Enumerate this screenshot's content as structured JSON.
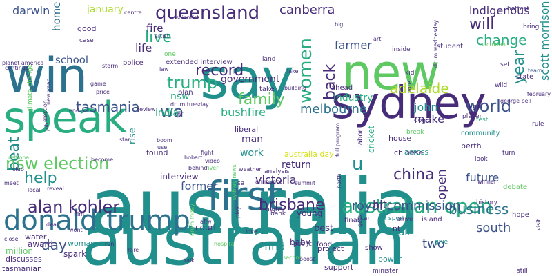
{
  "palette": {
    "purple": "#472c7a",
    "indigo": "#3b528b",
    "blue": "#2c728e",
    "teal": "#21908d",
    "green": "#28ae80",
    "lime": "#5ec962",
    "yellow": "#addc30",
    "bright": "#d5e21a"
  },
  "words": [
    {
      "text": "australia",
      "size": 112,
      "color": "teal",
      "rot": false
    },
    {
      "text": "australian",
      "size": 96,
      "color": "teal",
      "rot": false
    },
    {
      "text": "sydney",
      "size": 64,
      "color": "purple",
      "rot": false
    },
    {
      "text": "new",
      "size": 70,
      "color": "lime",
      "rot": false
    },
    {
      "text": "say",
      "size": 80,
      "color": "teal",
      "rot": false
    },
    {
      "text": "win",
      "size": 70,
      "color": "blue",
      "rot": false
    },
    {
      "text": "speak",
      "size": 62,
      "color": "green",
      "rot": false
    },
    {
      "text": "first",
      "size": 58,
      "color": "blue",
      "rot": false
    },
    {
      "text": "donald trump",
      "size": 40,
      "color": "blue",
      "rot": false
    },
    {
      "text": "australian open",
      "size": 28,
      "color": "green",
      "rot": false
    },
    {
      "text": "queensland",
      "size": 26,
      "color": "purple",
      "rot": false
    },
    {
      "text": "canberra",
      "size": 18,
      "color": "purple",
      "rot": false
    },
    {
      "text": "indigenous",
      "size": 16,
      "color": "purple",
      "rot": false
    },
    {
      "text": "will",
      "size": 22,
      "color": "purple",
      "rot": false
    },
    {
      "text": "change",
      "size": 20,
      "color": "green",
      "rot": false
    },
    {
      "text": "women",
      "size": 26,
      "color": "green",
      "rot": true
    },
    {
      "text": "back",
      "size": 22,
      "color": "purple",
      "rot": true
    },
    {
      "text": "trump",
      "size": 24,
      "color": "green",
      "rot": false
    },
    {
      "text": "record",
      "size": 22,
      "color": "purple",
      "rot": false
    },
    {
      "text": "live",
      "size": 22,
      "color": "green",
      "rot": false
    },
    {
      "text": "life",
      "size": 16,
      "color": "purple",
      "rot": false
    },
    {
      "text": "fire",
      "size": 15,
      "color": "purple",
      "rot": false
    },
    {
      "text": "darwin",
      "size": 16,
      "color": "indigo",
      "rot": false
    },
    {
      "text": "january",
      "size": 14,
      "color": "yellow",
      "rot": false
    },
    {
      "text": "home",
      "size": 15,
      "color": "blue",
      "rot": true
    },
    {
      "text": "good",
      "size": 11,
      "color": "purple",
      "rot": false
    },
    {
      "text": "case",
      "size": 9,
      "color": "purple",
      "rot": false
    },
    {
      "text": "school",
      "size": 15,
      "color": "indigo",
      "rot": false
    },
    {
      "text": "tasmania",
      "size": 20,
      "color": "indigo",
      "rot": false
    },
    {
      "text": "wa",
      "size": 24,
      "color": "indigo",
      "rot": false
    },
    {
      "text": "family",
      "size": 22,
      "color": "lime",
      "rot": false
    },
    {
      "text": "government",
      "size": 14,
      "color": "purple",
      "rot": false
    },
    {
      "text": "melbourne",
      "size": 18,
      "color": "blue",
      "rot": false
    },
    {
      "text": "adelaide",
      "size": 20,
      "color": "yellow",
      "rot": false
    },
    {
      "text": "farmer",
      "size": 16,
      "color": "indigo",
      "rot": false
    },
    {
      "text": "industry",
      "size": 14,
      "color": "green",
      "rot": false
    },
    {
      "text": "world",
      "size": 24,
      "color": "indigo",
      "rot": false
    },
    {
      "text": "john",
      "size": 16,
      "color": "teal",
      "rot": false
    },
    {
      "text": "make",
      "size": 16,
      "color": "purple",
      "rot": false
    },
    {
      "text": "year",
      "size": 22,
      "color": "teal",
      "rot": true
    },
    {
      "text": "scott morrison",
      "size": 16,
      "color": "teal",
      "rot": true
    },
    {
      "text": "bushfire",
      "size": 16,
      "color": "green",
      "rot": false
    },
    {
      "text": "beat",
      "size": 22,
      "color": "teal",
      "rot": true
    },
    {
      "text": "nsw election",
      "size": 24,
      "color": "lime",
      "rot": false
    },
    {
      "text": "help",
      "size": 22,
      "color": "teal",
      "rot": false
    },
    {
      "text": "alan kohler",
      "size": 24,
      "color": "purple",
      "rot": false
    },
    {
      "text": "brisbane",
      "size": 22,
      "color": "purple",
      "rot": false
    },
    {
      "text": "china",
      "size": 22,
      "color": "purple",
      "rot": false
    },
    {
      "text": "u",
      "size": 26,
      "color": "teal",
      "rot": false
    },
    {
      "text": "business",
      "size": 20,
      "color": "blue",
      "rot": false
    },
    {
      "text": "open",
      "size": 18,
      "color": "purple",
      "rot": true
    },
    {
      "text": "two",
      "size": 18,
      "color": "indigo",
      "rot": false
    },
    {
      "text": "day",
      "size": 20,
      "color": "indigo",
      "rot": false
    },
    {
      "text": "royal commission",
      "size": 18,
      "color": "indigo",
      "rot": false
    },
    {
      "text": "hit",
      "size": 16,
      "color": "purple",
      "rot": false
    },
    {
      "text": "south",
      "size": 18,
      "color": "indigo",
      "rot": false
    },
    {
      "text": "future",
      "size": 16,
      "color": "indigo",
      "rot": false
    },
    {
      "text": "victoria",
      "size": 16,
      "color": "purple",
      "rot": false
    },
    {
      "text": "former",
      "size": 16,
      "color": "indigo",
      "rot": false
    },
    {
      "text": "return",
      "size": 14,
      "color": "purple",
      "rot": false
    },
    {
      "text": "man",
      "size": 14,
      "color": "purple",
      "rot": false
    },
    {
      "text": "work",
      "size": 14,
      "color": "teal",
      "rot": false
    },
    {
      "text": "find",
      "size": 16,
      "color": "teal",
      "rot": false
    },
    {
      "text": "call",
      "size": 14,
      "color": "teal",
      "rot": false
    },
    {
      "text": "power",
      "size": 11,
      "color": "teal",
      "rot": false
    },
    {
      "text": "support",
      "size": 11,
      "color": "purple",
      "rot": false
    },
    {
      "text": "project",
      "size": 11,
      "color": "purple",
      "rot": false
    },
    {
      "text": "best",
      "size": 13,
      "color": "purple",
      "rot": false
    },
    {
      "text": "young",
      "size": 12,
      "color": "purple",
      "rot": false
    },
    {
      "text": "baby",
      "size": 12,
      "color": "purple",
      "rot": false
    },
    {
      "text": "award",
      "size": 12,
      "color": "purple",
      "rot": false
    },
    {
      "text": "court",
      "size": 12,
      "color": "purple",
      "rot": false
    },
    {
      "text": "woman",
      "size": 11,
      "color": "teal",
      "rot": false
    },
    {
      "text": "spark",
      "size": 12,
      "color": "purple",
      "rot": false
    },
    {
      "text": "water",
      "size": 11,
      "color": "purple",
      "rot": false
    },
    {
      "text": "tasmanian",
      "size": 11,
      "color": "purple",
      "rot": false
    },
    {
      "text": "discusses",
      "size": 11,
      "color": "purple",
      "rot": false
    },
    {
      "text": "million",
      "size": 12,
      "color": "lime",
      "rot": false
    },
    {
      "text": "india",
      "size": 14,
      "color": "green",
      "rot": false
    },
    {
      "text": "nsw",
      "size": 14,
      "color": "green",
      "rot": false
    },
    {
      "text": "interview",
      "size": 12,
      "color": "purple",
      "rot": false
    },
    {
      "text": "extended interview",
      "size": 10,
      "color": "purple",
      "rot": false
    },
    {
      "text": "police",
      "size": 10,
      "color": "purple",
      "rot": false
    },
    {
      "text": "liberal",
      "size": 11,
      "color": "purple",
      "rot": false
    },
    {
      "text": "found",
      "size": 11,
      "color": "purple",
      "rot": false
    },
    {
      "text": "perth",
      "size": 11,
      "color": "purple",
      "rot": false
    },
    {
      "text": "chinese",
      "size": 11,
      "color": "purple",
      "rot": false
    },
    {
      "text": "house",
      "size": 11,
      "color": "purple",
      "rot": false
    },
    {
      "text": "across",
      "size": 11,
      "color": "teal",
      "rot": false
    },
    {
      "text": "community",
      "size": 10,
      "color": "teal",
      "rot": false
    },
    {
      "text": "student",
      "size": 10,
      "color": "purple",
      "rot": false
    },
    {
      "text": "inside",
      "size": 9,
      "color": "purple",
      "rot": false
    },
    {
      "text": "land",
      "size": 9,
      "color": "purple",
      "rot": false
    },
    {
      "text": "take",
      "size": 10,
      "color": "purple",
      "rot": false
    },
    {
      "text": "ahead",
      "size": 10,
      "color": "purple",
      "rot": false
    },
    {
      "text": "plan",
      "size": 10,
      "color": "purple",
      "rot": false
    },
    {
      "text": "cricket",
      "size": 12,
      "color": "green",
      "rot": true
    },
    {
      "text": "australia day",
      "size": 11,
      "color": "bright",
      "rot": false
    },
    {
      "text": "labor",
      "size": 10,
      "color": "purple",
      "rot": true
    },
    {
      "text": "rise",
      "size": 13,
      "color": "teal",
      "rot": true
    },
    {
      "text": "hottest",
      "size": 9,
      "color": "purple",
      "rot": false
    },
    {
      "text": "bring",
      "size": 9,
      "color": "purple",
      "rot": false
    },
    {
      "text": "set",
      "size": 9,
      "color": "purple",
      "rot": false
    },
    {
      "text": "state",
      "size": 10,
      "color": "purple",
      "rot": false
    },
    {
      "text": "team",
      "size": 8,
      "color": "indigo",
      "rot": false
    },
    {
      "text": "wild",
      "size": 9,
      "color": "purple",
      "rot": false
    },
    {
      "text": "rule",
      "size": 9,
      "color": "purple",
      "rot": false
    },
    {
      "text": "turn",
      "size": 9,
      "color": "purple",
      "rot": false
    },
    {
      "text": "look",
      "size": 9,
      "color": "purple",
      "rot": false
    },
    {
      "text": "hope",
      "size": 10,
      "color": "purple",
      "rot": false
    },
    {
      "text": "debate",
      "size": 10,
      "color": "lime",
      "rot": false
    },
    {
      "text": "history",
      "size": 9,
      "color": "purple",
      "rot": false
    },
    {
      "text": "final",
      "size": 10,
      "color": "purple",
      "rot": false
    },
    {
      "text": "show",
      "size": 10,
      "color": "purple",
      "rot": false
    },
    {
      "text": "food",
      "size": 10,
      "color": "purple",
      "rot": false
    },
    {
      "text": "public",
      "size": 9,
      "color": "purple",
      "rot": false
    },
    {
      "text": "give",
      "size": 9,
      "color": "teal",
      "rot": false
    },
    {
      "text": "still",
      "size": 9,
      "color": "purple",
      "rot": false
    },
    {
      "text": "minister",
      "size": 9,
      "color": "purple",
      "rot": false
    },
    {
      "text": "visit",
      "size": 8,
      "color": "purple",
      "rot": true
    },
    {
      "text": "island",
      "size": 10,
      "color": "purple",
      "rot": false
    },
    {
      "text": "afl sport",
      "size": 9,
      "color": "teal",
      "rot": false
    },
    {
      "text": "dog",
      "size": 9,
      "color": "purple",
      "rot": false
    },
    {
      "text": "player",
      "size": 9,
      "color": "purple",
      "rot": false
    },
    {
      "text": "girl",
      "size": 9,
      "color": "purple",
      "rot": false
    },
    {
      "text": "kid",
      "size": 9,
      "color": "purple",
      "rot": false
    },
    {
      "text": "test",
      "size": 9,
      "color": "green",
      "rot": false
    },
    {
      "text": "break",
      "size": 9,
      "color": "lime",
      "rot": false
    },
    {
      "text": "winner",
      "size": 8,
      "color": "purple",
      "rot": false
    },
    {
      "text": "february",
      "size": 8,
      "color": "purple",
      "rot": false
    },
    {
      "text": "george pell",
      "size": 8,
      "color": "purple",
      "rot": false
    },
    {
      "text": "victorian",
      "size": 8,
      "color": "lime",
      "rot": false
    },
    {
      "text": "arrive",
      "size": 8,
      "color": "purple",
      "rot": false
    },
    {
      "text": "nt",
      "size": 11,
      "color": "purple",
      "rot": false
    },
    {
      "text": "car",
      "size": 9,
      "color": "purple",
      "rot": false
    },
    {
      "text": "high",
      "size": 9,
      "color": "purple",
      "rot": false
    },
    {
      "text": "bank",
      "size": 9,
      "color": "purple",
      "rot": false
    },
    {
      "text": "announce",
      "size": 8,
      "color": "purple",
      "rot": false
    },
    {
      "text": "sa",
      "size": 9,
      "color": "purple",
      "rot": false
    },
    {
      "text": "summit",
      "size": 8,
      "color": "purple",
      "rot": false
    },
    {
      "text": "analysis",
      "size": 9,
      "color": "purple",
      "rot": false
    },
    {
      "text": "weather",
      "size": 8,
      "color": "purple",
      "rot": false
    },
    {
      "text": "video",
      "size": 8,
      "color": "purple",
      "rot": false
    },
    {
      "text": "river",
      "size": 8,
      "color": "lime",
      "rot": false
    },
    {
      "text": "behind",
      "size": 8,
      "color": "purple",
      "rot": false
    },
    {
      "text": "fight",
      "size": 8,
      "color": "purple",
      "rot": false
    },
    {
      "text": "hobart",
      "size": 8,
      "color": "purple",
      "rot": false
    },
    {
      "text": "boom",
      "size": 8,
      "color": "purple",
      "rot": false
    },
    {
      "text": "nrl",
      "size": 8,
      "color": "purple",
      "rot": false
    },
    {
      "text": "drum tuesday",
      "size": 8,
      "color": "purple",
      "rot": false
    },
    {
      "text": "review",
      "size": 8,
      "color": "purple",
      "rot": false
    },
    {
      "text": "star",
      "size": 8,
      "color": "purple",
      "rot": false
    },
    {
      "text": "use",
      "size": 8,
      "color": "purple",
      "rot": false
    },
    {
      "text": "law",
      "size": 8,
      "color": "purple",
      "rot": false
    },
    {
      "text": "storm",
      "size": 8,
      "color": "purple",
      "rot": false
    },
    {
      "text": "game",
      "size": 8,
      "color": "purple",
      "rot": false
    },
    {
      "text": "price",
      "size": 8,
      "color": "purple",
      "rot": false
    },
    {
      "text": "end",
      "size": 8,
      "color": "purple",
      "rot": false
    },
    {
      "text": "new year",
      "size": 8,
      "color": "purple",
      "rot": true
    },
    {
      "text": "become",
      "size": 8,
      "color": "purple",
      "rot": false
    },
    {
      "text": "job",
      "size": 8,
      "color": "purple",
      "rot": true
    },
    {
      "text": "election",
      "size": 8,
      "color": "purple",
      "rot": true
    },
    {
      "text": "climate change",
      "size": 9,
      "color": "lime",
      "rot": true
    },
    {
      "text": "national",
      "size": 8,
      "color": "lime",
      "rot": false
    },
    {
      "text": "club",
      "size": 8,
      "color": "purple",
      "rot": false
    },
    {
      "text": "meet",
      "size": 8,
      "color": "purple",
      "rot": false
    },
    {
      "text": "local",
      "size": 8,
      "color": "purple",
      "rot": false
    },
    {
      "text": "reveal",
      "size": 8,
      "color": "purple",
      "rot": false
    },
    {
      "text": "deal",
      "size": 8,
      "color": "purple",
      "rot": false
    },
    {
      "text": "film",
      "size": 8,
      "color": "purple",
      "rot": false
    },
    {
      "text": "wont",
      "size": 8,
      "color": "purple",
      "rot": false
    },
    {
      "text": "close",
      "size": 8,
      "color": "purple",
      "rot": false
    },
    {
      "text": "run",
      "size": 8,
      "color": "purple",
      "rot": false
    },
    {
      "text": "rare",
      "size": 8,
      "color": "purple",
      "rot": false
    },
    {
      "text": "talk",
      "size": 8,
      "color": "purple",
      "rot": false
    },
    {
      "text": "hospital",
      "size": 8,
      "color": "lime",
      "rot": false
    },
    {
      "text": "aflw",
      "size": 8,
      "color": "purple",
      "rot": false
    },
    {
      "text": "play",
      "size": 8,
      "color": "purple",
      "rot": true
    },
    {
      "text": "sydney news",
      "size": 8,
      "color": "lime",
      "rot": true
    },
    {
      "text": "drum friday",
      "size": 8,
      "color": "lime",
      "rot": true
    },
    {
      "text": "love",
      "size": 8,
      "color": "purple",
      "rot": false
    },
    {
      "text": "second",
      "size": 8,
      "color": "lime",
      "rot": false
    },
    {
      "text": "boost",
      "size": 8,
      "color": "purple",
      "rot": false
    },
    {
      "text": "north",
      "size": 8,
      "color": "purple",
      "rot": true
    },
    {
      "text": "gets",
      "size": 8,
      "color": "purple",
      "rot": true
    },
    {
      "text": "full program",
      "size": 8,
      "color": "purple",
      "rot": true
    },
    {
      "text": "vote",
      "size": 8,
      "color": "purple",
      "rot": true
    },
    {
      "text": "centre",
      "size": 8,
      "color": "purple",
      "rot": false
    },
    {
      "text": "scientist",
      "size": 8,
      "color": "purple",
      "rot": false
    },
    {
      "text": "big",
      "size": 8,
      "color": "purple",
      "rot": false
    },
    {
      "text": "artist",
      "size": 8,
      "color": "purple",
      "rot": false
    },
    {
      "text": "one",
      "size": 9,
      "color": "lime",
      "rot": false
    },
    {
      "text": "lake",
      "size": 8,
      "color": "purple",
      "rot": false
    },
    {
      "text": "building",
      "size": 8,
      "color": "purple",
      "rot": false
    },
    {
      "text": "art",
      "size": 8,
      "color": "purple",
      "rot": false
    },
    {
      "text": "drum wednesday",
      "size": 8,
      "color": "purple",
      "rot": true
    },
    {
      "text": "planet america",
      "size": 8,
      "color": "purple",
      "rot": false
    },
    {
      "text": "continue",
      "size": 8,
      "color": "purple",
      "rot": false
    }
  ]
}
